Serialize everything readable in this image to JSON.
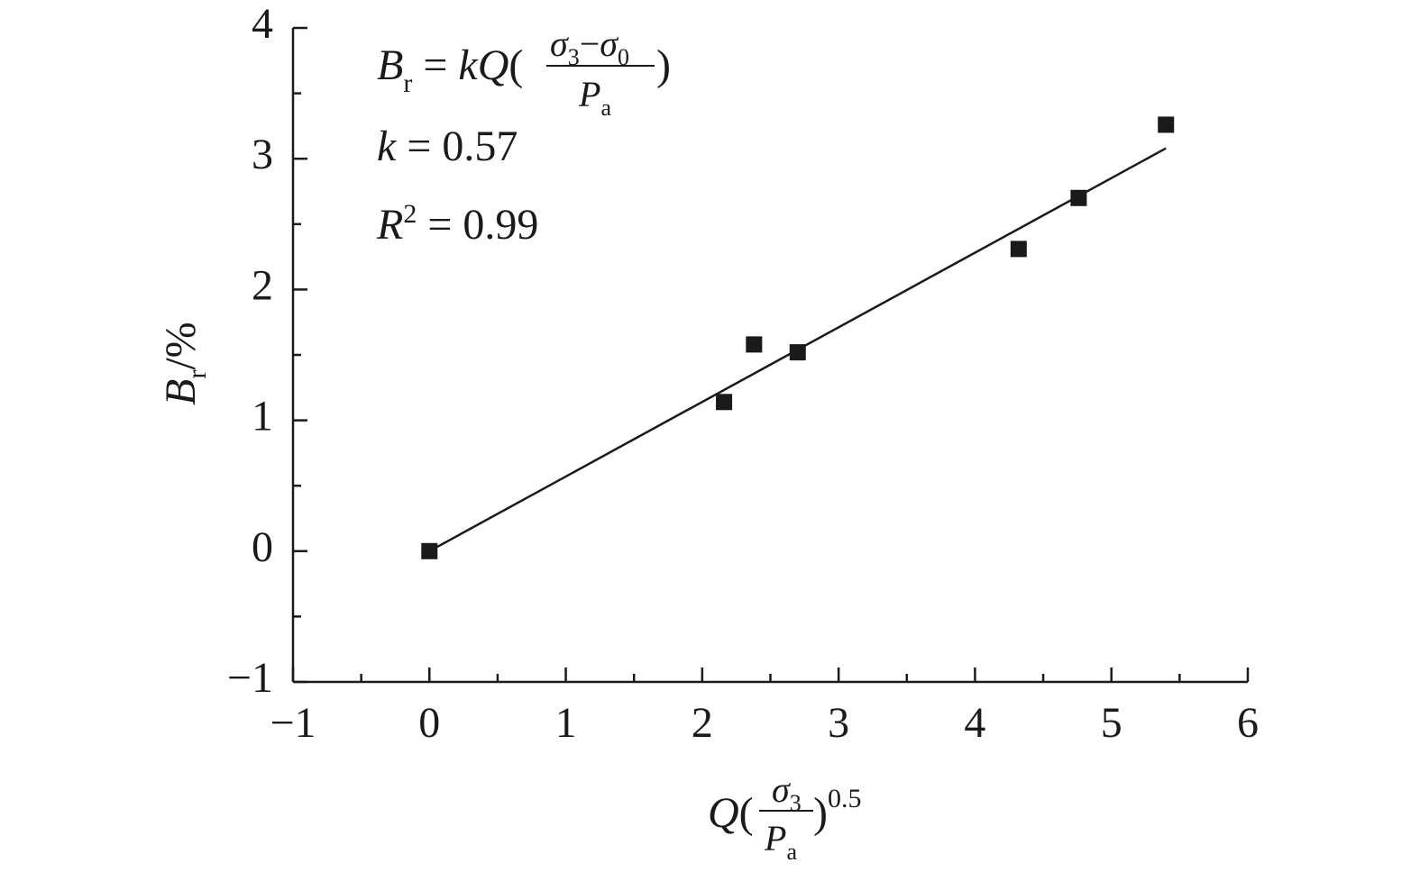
{
  "chart_data": {
    "type": "scatter",
    "x_label": {
      "q": "Q",
      "open": "(",
      "num": "σ",
      "num_sub": "3",
      "den": "P",
      "den_sub": "a",
      "close": ")",
      "power": "0.5"
    },
    "y_label": {
      "main": "B",
      "sub": "r",
      "rest": "/%"
    },
    "equation": {
      "lhs": "B",
      "lhs_sub": "r",
      "eq": " = ",
      "k": "k",
      "q": "Q",
      "open": "(",
      "s1": "σ",
      "s1_sub": "3",
      "minus": "−",
      "s2": "σ",
      "s2_sub": "0",
      "den": "P",
      "den_sub": "a",
      "close": ")"
    },
    "k_annotation": {
      "symbol": "k",
      "text": " = 0.57"
    },
    "r2_annotation": {
      "symbol": "R",
      "sup": "2",
      "text": " = 0.99"
    },
    "x": [
      0,
      2.16,
      2.38,
      2.7,
      4.32,
      4.76,
      5.4
    ],
    "values": [
      0,
      1.14,
      1.58,
      1.52,
      2.31,
      2.7,
      3.26
    ],
    "color": "#1a1a1a",
    "fit_line": {
      "x": [
        0,
        5.4
      ],
      "values": [
        0,
        3.08
      ]
    },
    "xlim": [
      -1,
      6
    ],
    "xticks": [
      {
        "value": -1,
        "label": "−1"
      },
      0,
      1,
      2,
      3,
      4,
      5,
      6
    ],
    "ylim": [
      -1,
      4
    ],
    "yticks": [
      {
        "value": -1,
        "label": "−1"
      },
      0,
      1,
      2,
      3,
      4
    ]
  }
}
